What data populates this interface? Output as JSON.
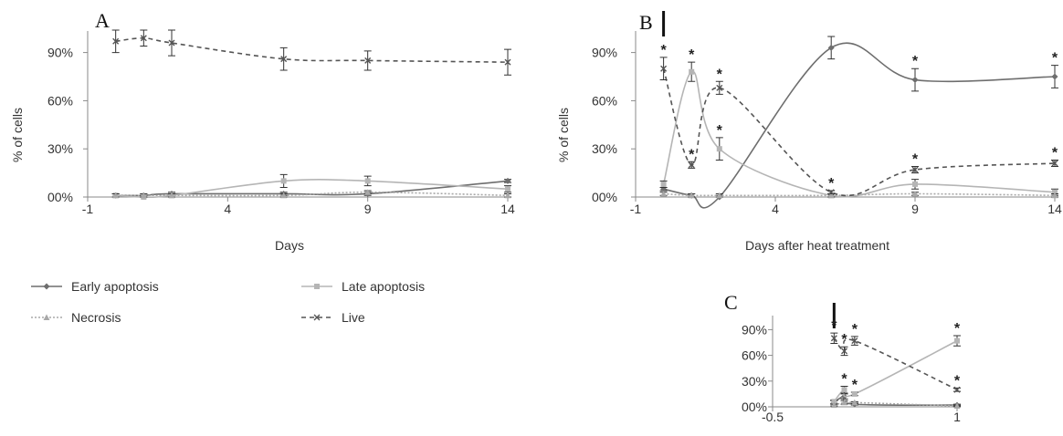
{
  "series_styles": {
    "early": {
      "color": "#6e6e6e",
      "dash": "",
      "marker": "diamond"
    },
    "late": {
      "color": "#b5b5b5",
      "dash": "",
      "marker": "square"
    },
    "necrosis": {
      "color": "#a8a8a8",
      "dash": "2,2",
      "marker": "triangle"
    },
    "live": {
      "color": "#555555",
      "dash": "5,4",
      "marker": "x"
    }
  },
  "legend": [
    {
      "key": "early",
      "label": "Early apoptosis"
    },
    {
      "key": "late",
      "label": "Late apoptosis"
    },
    {
      "key": "necrosis",
      "label": "Necrosis"
    },
    {
      "key": "live",
      "label": "Live"
    }
  ],
  "chart_data": [
    {
      "panel": "A",
      "type": "line",
      "title": "",
      "xlabel": "Days",
      "ylabel": "% of cells",
      "xlim": [
        -1,
        14
      ],
      "ylim": [
        0,
        100
      ],
      "xticks": [
        -1,
        4,
        9,
        14
      ],
      "xtick_labels": [
        "-1",
        "4",
        "9",
        "14"
      ],
      "yticks": [
        0,
        30,
        60,
        90
      ],
      "ytick_labels": [
        "00%",
        "30%",
        "60%",
        "90%"
      ],
      "arrow_x": null,
      "series": [
        {
          "key": "early",
          "name": "Early apoptosis",
          "x": [
            0,
            1,
            2,
            6,
            9,
            14
          ],
          "y": [
            1,
            1,
            2,
            2,
            2,
            10
          ],
          "err": [
            1,
            1,
            1,
            1,
            1,
            1
          ],
          "stars": []
        },
        {
          "key": "late",
          "name": "Late apoptosis",
          "x": [
            0,
            1,
            2,
            6,
            9,
            14
          ],
          "y": [
            1,
            0,
            1,
            10,
            10,
            5
          ],
          "err": [
            1,
            1,
            1,
            4,
            3,
            2
          ],
          "stars": []
        },
        {
          "key": "necrosis",
          "name": "Necrosis",
          "x": [
            0,
            1,
            2,
            6,
            9,
            14
          ],
          "y": [
            1,
            1,
            1,
            1,
            3,
            1
          ],
          "err": [
            1,
            1,
            1,
            1,
            1,
            1
          ],
          "stars": []
        },
        {
          "key": "live",
          "name": "Live",
          "x": [
            0,
            1,
            2,
            6,
            9,
            14
          ],
          "y": [
            97,
            99,
            96,
            86,
            85,
            84
          ],
          "err": [
            7,
            5,
            8,
            7,
            6,
            8
          ],
          "stars": []
        }
      ]
    },
    {
      "panel": "B",
      "type": "line",
      "title": "",
      "xlabel": "Days after heat treatment",
      "ylabel": "% of cells",
      "xlim": [
        -1,
        14
      ],
      "ylim": [
        0,
        100
      ],
      "xticks": [
        -1,
        4,
        9,
        14
      ],
      "xtick_labels": [
        "-1",
        "4",
        "9",
        "14"
      ],
      "yticks": [
        0,
        30,
        60,
        90
      ],
      "ytick_labels": [
        "00%",
        "30%",
        "60%",
        "90%"
      ],
      "arrow_x": 0,
      "series": [
        {
          "key": "early",
          "name": "Early apoptosis",
          "x": [
            0,
            1,
            2,
            6,
            9,
            14
          ],
          "y": [
            5,
            1,
            0,
            93,
            73,
            75
          ],
          "err": [
            1,
            1,
            1,
            7,
            7,
            7
          ],
          "stars": [
            false,
            false,
            false,
            false,
            true,
            true
          ]
        },
        {
          "key": "late",
          "name": "Late apoptosis",
          "x": [
            0,
            1,
            2,
            6,
            9,
            14
          ],
          "y": [
            8,
            78,
            30,
            1,
            8,
            3
          ],
          "err": [
            2,
            6,
            7,
            1,
            3,
            2
          ],
          "stars": [
            false,
            true,
            true,
            false,
            false,
            false
          ]
        },
        {
          "key": "necrosis",
          "name": "Necrosis",
          "x": [
            0,
            1,
            2,
            6,
            9,
            14
          ],
          "y": [
            2,
            1,
            1,
            1,
            2,
            1
          ],
          "err": [
            1,
            1,
            1,
            1,
            1,
            1
          ],
          "stars": [
            false,
            false,
            false,
            false,
            false,
            false
          ]
        },
        {
          "key": "live",
          "name": "Live",
          "x": [
            0,
            1,
            2,
            6,
            9,
            14
          ],
          "y": [
            80,
            20,
            68,
            3,
            17,
            21
          ],
          "err": [
            7,
            2,
            4,
            1,
            2,
            2
          ],
          "stars": [
            true,
            true,
            true,
            true,
            true,
            true
          ]
        }
      ]
    },
    {
      "panel": "C",
      "type": "line",
      "title": "",
      "xlabel": "",
      "ylabel": "",
      "xlim": [
        -0.5,
        1
      ],
      "ylim": [
        0,
        100
      ],
      "xticks": [
        -0.5,
        1
      ],
      "xtick_labels": [
        "-0.5",
        "1"
      ],
      "yticks": [
        0,
        30,
        60,
        90
      ],
      "ytick_labels": [
        "00%",
        "30%",
        "60%",
        "90%"
      ],
      "arrow_x": 0,
      "series": [
        {
          "key": "early",
          "name": "Early apoptosis",
          "x": [
            0,
            0.083,
            0.167,
            1
          ],
          "y": [
            5,
            12,
            3,
            2
          ],
          "err": [
            2,
            3,
            1,
            1
          ],
          "stars": [
            false,
            false,
            false,
            false
          ]
        },
        {
          "key": "late",
          "name": "Late apoptosis",
          "x": [
            0,
            0.083,
            0.167,
            1
          ],
          "y": [
            6,
            20,
            15,
            77
          ],
          "err": [
            2,
            4,
            2,
            6
          ],
          "stars": [
            false,
            true,
            true,
            true
          ]
        },
        {
          "key": "necrosis",
          "name": "Necrosis",
          "x": [
            0,
            0.083,
            0.167,
            1
          ],
          "y": [
            2,
            5,
            5,
            1
          ],
          "err": [
            1,
            2,
            1,
            1
          ],
          "stars": [
            false,
            false,
            false,
            false
          ]
        },
        {
          "key": "live",
          "name": "Live",
          "x": [
            0,
            0.083,
            0.167,
            1
          ],
          "y": [
            80,
            65,
            77,
            20
          ],
          "err": [
            6,
            5,
            5,
            2
          ],
          "stars": [
            true,
            true,
            true,
            true
          ]
        }
      ]
    }
  ]
}
